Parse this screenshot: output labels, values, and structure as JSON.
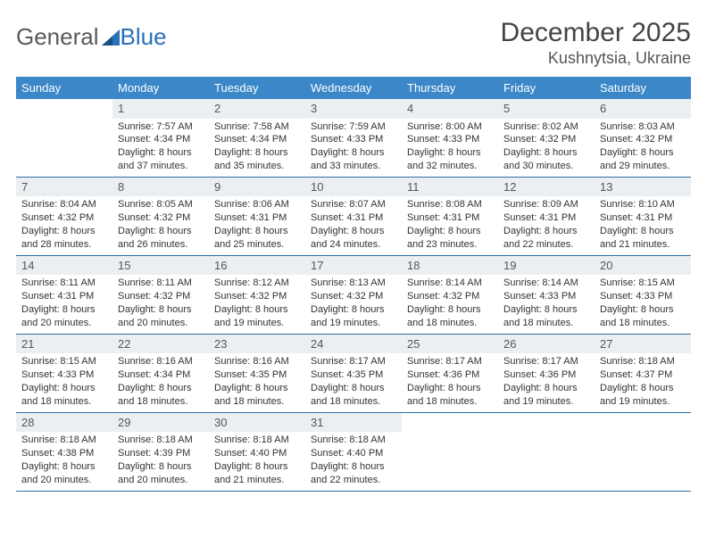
{
  "logo": {
    "text1": "General",
    "text2": "Blue"
  },
  "title": "December 2025",
  "location": "Kushnytsia, Ukraine",
  "colors": {
    "header_bg": "#3b87c8",
    "header_text": "#ffffff",
    "daynum_bg": "#eceff1",
    "row_border": "#2e6da4",
    "logo_gray": "#5a5a5a",
    "logo_blue": "#2a71b8",
    "text": "#333333"
  },
  "weekdays": [
    "Sunday",
    "Monday",
    "Tuesday",
    "Wednesday",
    "Thursday",
    "Friday",
    "Saturday"
  ],
  "weeks": [
    [
      null,
      {
        "n": "1",
        "sr": "Sunrise: 7:57 AM",
        "ss": "Sunset: 4:34 PM",
        "dl": "Daylight: 8 hours and 37 minutes."
      },
      {
        "n": "2",
        "sr": "Sunrise: 7:58 AM",
        "ss": "Sunset: 4:34 PM",
        "dl": "Daylight: 8 hours and 35 minutes."
      },
      {
        "n": "3",
        "sr": "Sunrise: 7:59 AM",
        "ss": "Sunset: 4:33 PM",
        "dl": "Daylight: 8 hours and 33 minutes."
      },
      {
        "n": "4",
        "sr": "Sunrise: 8:00 AM",
        "ss": "Sunset: 4:33 PM",
        "dl": "Daylight: 8 hours and 32 minutes."
      },
      {
        "n": "5",
        "sr": "Sunrise: 8:02 AM",
        "ss": "Sunset: 4:32 PM",
        "dl": "Daylight: 8 hours and 30 minutes."
      },
      {
        "n": "6",
        "sr": "Sunrise: 8:03 AM",
        "ss": "Sunset: 4:32 PM",
        "dl": "Daylight: 8 hours and 29 minutes."
      }
    ],
    [
      {
        "n": "7",
        "sr": "Sunrise: 8:04 AM",
        "ss": "Sunset: 4:32 PM",
        "dl": "Daylight: 8 hours and 28 minutes."
      },
      {
        "n": "8",
        "sr": "Sunrise: 8:05 AM",
        "ss": "Sunset: 4:32 PM",
        "dl": "Daylight: 8 hours and 26 minutes."
      },
      {
        "n": "9",
        "sr": "Sunrise: 8:06 AM",
        "ss": "Sunset: 4:31 PM",
        "dl": "Daylight: 8 hours and 25 minutes."
      },
      {
        "n": "10",
        "sr": "Sunrise: 8:07 AM",
        "ss": "Sunset: 4:31 PM",
        "dl": "Daylight: 8 hours and 24 minutes."
      },
      {
        "n": "11",
        "sr": "Sunrise: 8:08 AM",
        "ss": "Sunset: 4:31 PM",
        "dl": "Daylight: 8 hours and 23 minutes."
      },
      {
        "n": "12",
        "sr": "Sunrise: 8:09 AM",
        "ss": "Sunset: 4:31 PM",
        "dl": "Daylight: 8 hours and 22 minutes."
      },
      {
        "n": "13",
        "sr": "Sunrise: 8:10 AM",
        "ss": "Sunset: 4:31 PM",
        "dl": "Daylight: 8 hours and 21 minutes."
      }
    ],
    [
      {
        "n": "14",
        "sr": "Sunrise: 8:11 AM",
        "ss": "Sunset: 4:31 PM",
        "dl": "Daylight: 8 hours and 20 minutes."
      },
      {
        "n": "15",
        "sr": "Sunrise: 8:11 AM",
        "ss": "Sunset: 4:32 PM",
        "dl": "Daylight: 8 hours and 20 minutes."
      },
      {
        "n": "16",
        "sr": "Sunrise: 8:12 AM",
        "ss": "Sunset: 4:32 PM",
        "dl": "Daylight: 8 hours and 19 minutes."
      },
      {
        "n": "17",
        "sr": "Sunrise: 8:13 AM",
        "ss": "Sunset: 4:32 PM",
        "dl": "Daylight: 8 hours and 19 minutes."
      },
      {
        "n": "18",
        "sr": "Sunrise: 8:14 AM",
        "ss": "Sunset: 4:32 PM",
        "dl": "Daylight: 8 hours and 18 minutes."
      },
      {
        "n": "19",
        "sr": "Sunrise: 8:14 AM",
        "ss": "Sunset: 4:33 PM",
        "dl": "Daylight: 8 hours and 18 minutes."
      },
      {
        "n": "20",
        "sr": "Sunrise: 8:15 AM",
        "ss": "Sunset: 4:33 PM",
        "dl": "Daylight: 8 hours and 18 minutes."
      }
    ],
    [
      {
        "n": "21",
        "sr": "Sunrise: 8:15 AM",
        "ss": "Sunset: 4:33 PM",
        "dl": "Daylight: 8 hours and 18 minutes."
      },
      {
        "n": "22",
        "sr": "Sunrise: 8:16 AM",
        "ss": "Sunset: 4:34 PM",
        "dl": "Daylight: 8 hours and 18 minutes."
      },
      {
        "n": "23",
        "sr": "Sunrise: 8:16 AM",
        "ss": "Sunset: 4:35 PM",
        "dl": "Daylight: 8 hours and 18 minutes."
      },
      {
        "n": "24",
        "sr": "Sunrise: 8:17 AM",
        "ss": "Sunset: 4:35 PM",
        "dl": "Daylight: 8 hours and 18 minutes."
      },
      {
        "n": "25",
        "sr": "Sunrise: 8:17 AM",
        "ss": "Sunset: 4:36 PM",
        "dl": "Daylight: 8 hours and 18 minutes."
      },
      {
        "n": "26",
        "sr": "Sunrise: 8:17 AM",
        "ss": "Sunset: 4:36 PM",
        "dl": "Daylight: 8 hours and 19 minutes."
      },
      {
        "n": "27",
        "sr": "Sunrise: 8:18 AM",
        "ss": "Sunset: 4:37 PM",
        "dl": "Daylight: 8 hours and 19 minutes."
      }
    ],
    [
      {
        "n": "28",
        "sr": "Sunrise: 8:18 AM",
        "ss": "Sunset: 4:38 PM",
        "dl": "Daylight: 8 hours and 20 minutes."
      },
      {
        "n": "29",
        "sr": "Sunrise: 8:18 AM",
        "ss": "Sunset: 4:39 PM",
        "dl": "Daylight: 8 hours and 20 minutes."
      },
      {
        "n": "30",
        "sr": "Sunrise: 8:18 AM",
        "ss": "Sunset: 4:40 PM",
        "dl": "Daylight: 8 hours and 21 minutes."
      },
      {
        "n": "31",
        "sr": "Sunrise: 8:18 AM",
        "ss": "Sunset: 4:40 PM",
        "dl": "Daylight: 8 hours and 22 minutes."
      },
      null,
      null,
      null
    ]
  ]
}
